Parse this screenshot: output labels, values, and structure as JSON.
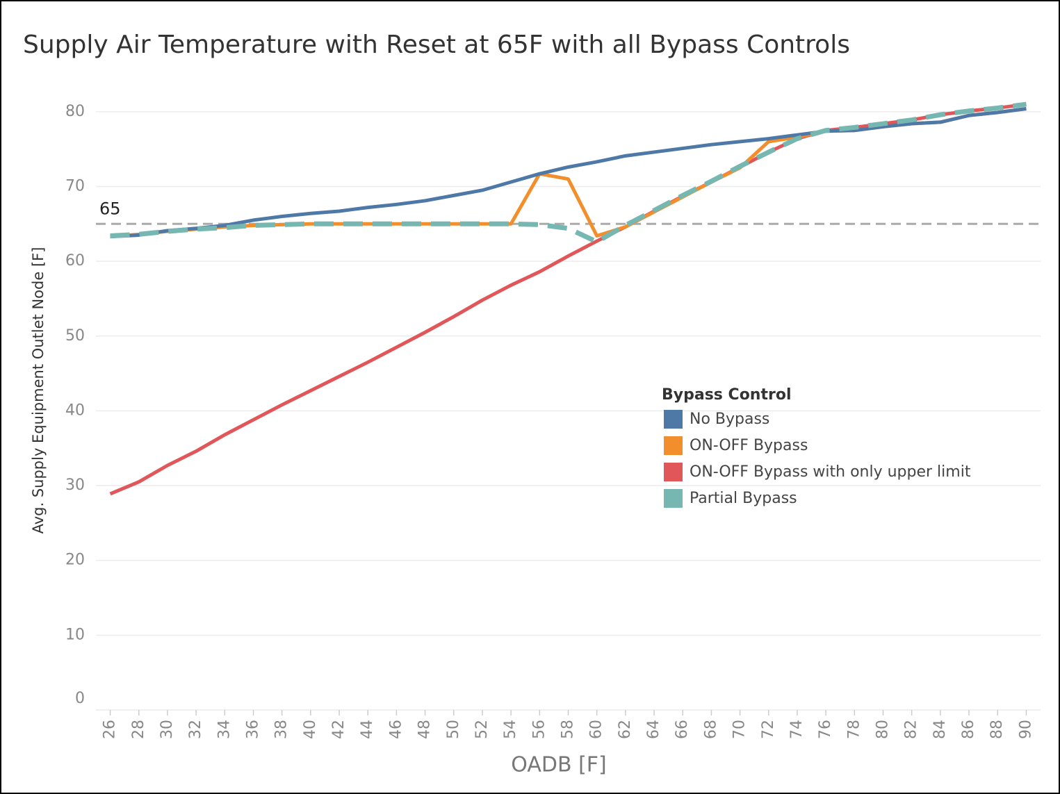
{
  "chart_data": {
    "type": "line",
    "title": "Supply Air Temperature with Reset at 65F with all Bypass Controls",
    "x_label": "OADB [F]",
    "y_label": "Avg. Supply Equipment Outlet Node [F]",
    "legend_title": "Bypass Control",
    "x": [
      26,
      28,
      30,
      32,
      34,
      36,
      38,
      40,
      42,
      44,
      46,
      48,
      50,
      52,
      54,
      56,
      58,
      60,
      62,
      64,
      66,
      68,
      70,
      72,
      74,
      76,
      78,
      80,
      82,
      84,
      86,
      88,
      90
    ],
    "series": [
      {
        "name": "ON-OFF Bypass with only upper limit",
        "color": "#e15759",
        "dashed": false,
        "values": [
          28.9,
          30.5,
          32.7,
          34.6,
          36.8,
          38.8,
          40.8,
          42.7,
          44.6,
          46.5,
          48.5,
          50.5,
          52.6,
          54.8,
          56.8,
          58.6,
          60.7,
          62.7,
          64.6,
          66.7,
          68.7,
          70.6,
          72.6,
          74.6,
          76.4,
          77.5,
          77.9,
          78.4,
          78.9,
          79.6,
          80.1,
          80.5,
          81.0
        ]
      },
      {
        "name": "ON-OFF Bypass",
        "color": "#f28e2b",
        "dashed": false,
        "values": [
          63.3,
          63.6,
          64.0,
          64.3,
          64.6,
          64.8,
          64.9,
          65.0,
          65.0,
          65.0,
          65.0,
          65.0,
          65.0,
          65.0,
          65.0,
          71.7,
          71.0,
          63.4,
          64.6,
          66.6,
          68.6,
          70.6,
          72.5,
          76.0,
          76.6,
          77.4,
          77.5,
          78.0,
          78.4,
          78.6,
          79.5,
          79.9,
          80.4
        ]
      },
      {
        "name": "No Bypass",
        "color": "#4e79a7",
        "dashed": false,
        "values": [
          63.3,
          63.5,
          64.1,
          64.4,
          64.8,
          65.5,
          66.0,
          66.4,
          66.7,
          67.2,
          67.6,
          68.1,
          68.8,
          69.5,
          70.6,
          71.7,
          72.6,
          73.3,
          74.1,
          74.6,
          75.1,
          75.6,
          76.0,
          76.4,
          76.9,
          77.4,
          77.5,
          78.0,
          78.4,
          78.6,
          79.5,
          79.9,
          80.4
        ]
      },
      {
        "name": "Partial Bypass",
        "color": "#76b7b2",
        "dashed": true,
        "values": [
          63.4,
          63.6,
          64.0,
          64.3,
          64.5,
          64.8,
          64.9,
          65.0,
          65.0,
          65.0,
          65.0,
          65.0,
          65.0,
          65.0,
          65.0,
          64.9,
          64.4,
          62.6,
          64.8,
          66.8,
          68.8,
          70.7,
          72.7,
          74.6,
          76.4,
          77.5,
          77.9,
          78.4,
          78.9,
          79.6,
          80.1,
          80.5,
          81.0
        ]
      }
    ],
    "legend_order": [
      2,
      1,
      0,
      3
    ],
    "reference_line": 65,
    "xlim": [
      25,
      91
    ],
    "xticks": [
      26,
      28,
      30,
      32,
      34,
      36,
      38,
      40,
      42,
      44,
      46,
      48,
      50,
      52,
      54,
      56,
      58,
      60,
      62,
      64,
      66,
      68,
      70,
      72,
      74,
      76,
      78,
      80,
      82,
      84,
      86,
      88,
      90
    ],
    "ylim": [
      0,
      85
    ],
    "yticks": [
      0,
      10,
      20,
      30,
      40,
      50,
      60,
      70,
      80
    ],
    "grid": true
  }
}
